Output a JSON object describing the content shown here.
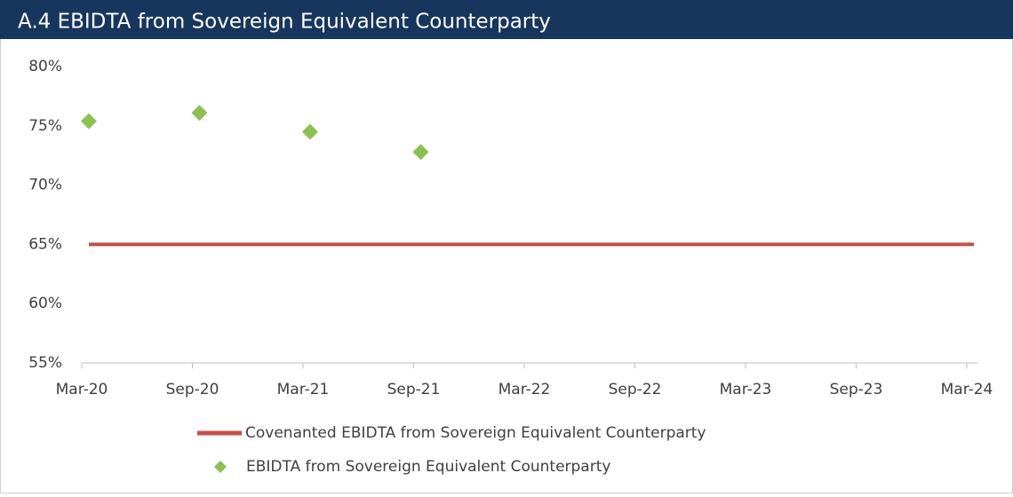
{
  "chart_data": {
    "type": "line",
    "title": "A.4 EBIDTA from Sovereign Equivalent Counterparty",
    "categories": [
      "Mar-20",
      "Sep-20",
      "Mar-21",
      "Sep-21",
      "Mar-22",
      "Sep-22",
      "Mar-23",
      "Sep-23",
      "Mar-24"
    ],
    "series": [
      {
        "name": "Covenanted EBIDTA from Sovereign Equivalent Counterparty",
        "color": "#c0504d",
        "style": "line",
        "values": [
          65,
          65,
          65,
          65,
          65,
          65,
          65,
          65,
          65
        ]
      },
      {
        "name": "EBIDTA from Sovereign Equivalent Counterparty",
        "color": "#8cc152",
        "style": "marker",
        "values": [
          75.4,
          76.1,
          74.5,
          72.8,
          null,
          null,
          null,
          null,
          null
        ]
      }
    ],
    "ylim": [
      55,
      80
    ],
    "yticks": [
      {
        "value": 55,
        "label": "55%"
      },
      {
        "value": 60,
        "label": "60%"
      },
      {
        "value": 65,
        "label": "65%"
      },
      {
        "value": 70,
        "label": "70%"
      },
      {
        "value": 75,
        "label": "75%"
      },
      {
        "value": 80,
        "label": "80%"
      }
    ],
    "grid": false,
    "legend": "bottom"
  }
}
